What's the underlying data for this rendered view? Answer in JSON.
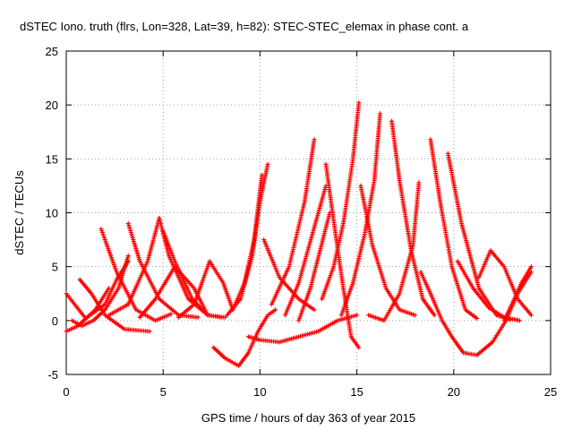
{
  "chart_data": {
    "type": "scatter",
    "title": "dSTEC Iono. truth (flrs, Lon=328, Lat=39, h=82): STEC-STEC_elemax in phase cont. a",
    "xlabel": "GPS time / hours of day 363 of year 2015",
    "ylabel": "dSTEC  / TECUs",
    "xlim": [
      0,
      25
    ],
    "ylim": [
      -5,
      25
    ],
    "xticks": [
      "0",
      "5",
      "10",
      "15",
      "20",
      "25"
    ],
    "yticks": [
      "-5",
      "0",
      "5",
      "10",
      "15",
      "20",
      "25"
    ],
    "grid": true,
    "marker": "+",
    "color": "#ff0000",
    "series": [
      {
        "x": [
          0.0,
          1.0,
          2.0,
          2.6,
          3.2
        ],
        "y": [
          2.5,
          0.2,
          1.5,
          3.8,
          5.5
        ]
      },
      {
        "x": [
          0.0,
          0.6,
          1.5,
          2.2
        ],
        "y": [
          -1.0,
          -0.5,
          1.0,
          3.0
        ]
      },
      {
        "x": [
          0.7,
          1.3,
          2.0,
          3.0,
          4.3
        ],
        "y": [
          3.8,
          2.5,
          0.5,
          -0.8,
          -1.0
        ]
      },
      {
        "x": [
          0.3,
          0.8,
          1.4,
          2.0,
          2.7,
          3.2
        ],
        "y": [
          0.0,
          -0.5,
          0.0,
          1.0,
          3.0,
          6.0
        ]
      },
      {
        "x": [
          1.8,
          2.6,
          3.6,
          4.6,
          5.4
        ],
        "y": [
          8.5,
          4.5,
          1.0,
          0.0,
          0.6
        ]
      },
      {
        "x": [
          3.2,
          3.8,
          4.8,
          5.8,
          6.8
        ],
        "y": [
          9.0,
          5.5,
          2.0,
          0.5,
          0.3
        ]
      },
      {
        "x": [
          2.2,
          3.2,
          4.2,
          4.8
        ],
        "y": [
          0.5,
          1.5,
          5.5,
          9.5
        ]
      },
      {
        "x": [
          4.8,
          5.3,
          6.3,
          7.3,
          8.2
        ],
        "y": [
          9.5,
          6.0,
          2.0,
          0.5,
          0.3
        ]
      },
      {
        "x": [
          5.0,
          5.6,
          6.5,
          7.3,
          8.0
        ],
        "y": [
          8.3,
          5.5,
          2.0,
          0.5,
          0.3
        ]
      },
      {
        "x": [
          3.8,
          4.6,
          5.6,
          6.6,
          7.3
        ],
        "y": [
          0.3,
          2.0,
          5.0,
          3.0,
          0.5
        ]
      },
      {
        "x": [
          5.8,
          6.6,
          7.4,
          8.1,
          8.6
        ],
        "y": [
          0.3,
          1.5,
          5.5,
          3.5,
          1.0
        ]
      },
      {
        "x": [
          7.6,
          8.2,
          8.9,
          9.4,
          9.9,
          10.4,
          10.8
        ],
        "y": [
          -2.5,
          -3.5,
          -4.2,
          -3.0,
          -1.0,
          0.5,
          1.0
        ]
      },
      {
        "x": [
          8.3,
          9.0,
          9.6,
          10.0,
          10.4
        ],
        "y": [
          0.5,
          2.0,
          6.0,
          11.0,
          14.5
        ]
      },
      {
        "x": [
          8.6,
          9.2,
          9.7,
          10.1
        ],
        "y": [
          1.0,
          3.5,
          7.5,
          13.5
        ]
      },
      {
        "x": [
          9.4,
          10.0,
          11.0,
          12.0,
          13.0,
          14.0,
          15.0
        ],
        "y": [
          -1.5,
          -1.8,
          -2.0,
          -1.5,
          -1.0,
          0.0,
          0.5
        ]
      },
      {
        "x": [
          10.2,
          11.0,
          12.0,
          12.8
        ],
        "y": [
          7.5,
          4.0,
          2.0,
          1.0
        ]
      },
      {
        "x": [
          10.6,
          11.5,
          12.3,
          12.8
        ],
        "y": [
          1.5,
          5.0,
          11.0,
          16.8
        ]
      },
      {
        "x": [
          11.3,
          12.0,
          12.7,
          13.4
        ],
        "y": [
          0.5,
          3.5,
          8.0,
          12.5
        ]
      },
      {
        "x": [
          12.0,
          12.6,
          13.1,
          13.6
        ],
        "y": [
          0.0,
          3.0,
          6.5,
          10.0
        ]
      },
      {
        "x": [
          13.2,
          13.8,
          14.3,
          14.8,
          15.1
        ],
        "y": [
          2.0,
          5.0,
          9.0,
          15.0,
          20.2
        ]
      },
      {
        "x": [
          13.4,
          13.9,
          14.3,
          14.7,
          15.1
        ],
        "y": [
          14.5,
          8.0,
          3.0,
          -1.5,
          -2.5
        ]
      },
      {
        "x": [
          14.2,
          14.8,
          15.4,
          15.9,
          16.2
        ],
        "y": [
          0.5,
          3.5,
          8.0,
          13.0,
          19.2
        ]
      },
      {
        "x": [
          15.2,
          15.8,
          16.5,
          17.2,
          18.0
        ],
        "y": [
          12.5,
          7.0,
          3.0,
          1.0,
          0.5
        ]
      },
      {
        "x": [
          16.8,
          17.2,
          17.8,
          18.4,
          19.0
        ],
        "y": [
          18.5,
          13.0,
          6.5,
          2.0,
          0.5
        ]
      },
      {
        "x": [
          15.6,
          16.4,
          17.2,
          17.9,
          18.2
        ],
        "y": [
          0.5,
          0.0,
          2.5,
          7.0,
          12.8
        ]
      },
      {
        "x": [
          18.8,
          19.3,
          19.9,
          20.6,
          21.2
        ],
        "y": [
          16.8,
          11.0,
          5.0,
          1.0,
          0.2
        ]
      },
      {
        "x": [
          18.3,
          18.8,
          19.4,
          19.9,
          20.5,
          21.2,
          22.0,
          22.7,
          23.3,
          24.0
        ],
        "y": [
          4.5,
          2.5,
          0.0,
          -1.5,
          -3.0,
          -3.2,
          -2.0,
          0.0,
          2.5,
          4.5
        ]
      },
      {
        "x": [
          19.7,
          20.4,
          21.3,
          22.2,
          22.9
        ],
        "y": [
          15.5,
          9.0,
          3.0,
          0.5,
          0.1
        ]
      },
      {
        "x": [
          20.2,
          21.0,
          21.8,
          22.6,
          23.4
        ],
        "y": [
          5.5,
          3.0,
          1.2,
          0.3,
          0.0
        ]
      },
      {
        "x": [
          21.3,
          21.9,
          22.6,
          23.3,
          24.0
        ],
        "y": [
          4.0,
          6.5,
          5.0,
          2.0,
          0.5
        ]
      },
      {
        "x": [
          22.6,
          23.0,
          23.5,
          24.0
        ],
        "y": [
          0.0,
          1.5,
          3.5,
          5.0
        ]
      }
    ]
  }
}
